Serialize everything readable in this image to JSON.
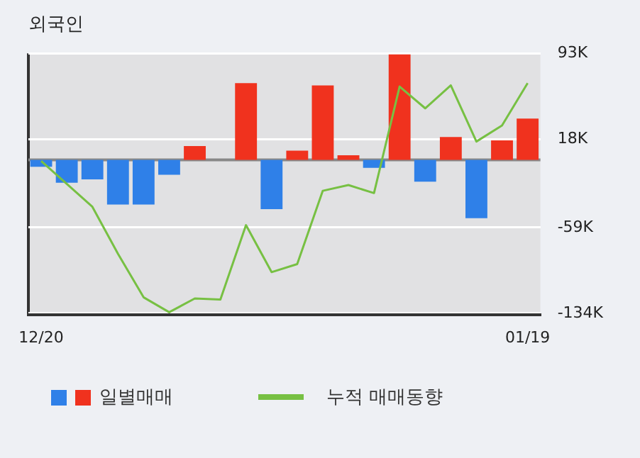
{
  "chart_data": {
    "type": "bar",
    "title": "외국인",
    "categories": [
      "12/20",
      null,
      null,
      null,
      null,
      null,
      null,
      null,
      null,
      null,
      null,
      null,
      null,
      null,
      null,
      null,
      null,
      null,
      null,
      "01/19"
    ],
    "series": [
      {
        "name": "일별매매",
        "axis": "y2",
        "colors": [
          "#2f80e8",
          "#2f80e8",
          "#2f80e8",
          "#2f80e8",
          "#2f80e8",
          "#2f80e8",
          "#f0321e",
          "#f0321e",
          "#f0321e",
          "#2f80e8",
          "#f0321e",
          "#f0321e",
          "#f0321e",
          "#2f80e8",
          "#f0321e",
          "#2f80e8",
          "#f0321e",
          "#2f80e8",
          "#f0321e",
          "#f0321e"
        ],
        "values": [
          -6,
          -20,
          -17,
          -39,
          -39,
          -13,
          12,
          null,
          67,
          -43,
          8,
          65,
          4,
          -7,
          92,
          -19,
          20,
          -51,
          17,
          36
        ]
      },
      {
        "name": "누적 매매동향",
        "type": "line",
        "axis": "y2",
        "color": "#77c043",
        "values": [
          -1,
          -21,
          -41,
          -82,
          -120,
          -133,
          -121,
          -122,
          -57,
          -98,
          -91,
          -27,
          -22,
          -29,
          64,
          45,
          65,
          16,
          30,
          67
        ]
      }
    ],
    "y2lim": [
      -135,
      93
    ],
    "y2ticks": [
      {
        "value": 93,
        "label": "93K"
      },
      {
        "value": 18,
        "label": "18K"
      },
      {
        "value": -59,
        "label": "-59K"
      },
      {
        "value": -134,
        "label": "-134K"
      }
    ],
    "grid": "y",
    "legend": "bottom",
    "marker": "none"
  }
}
